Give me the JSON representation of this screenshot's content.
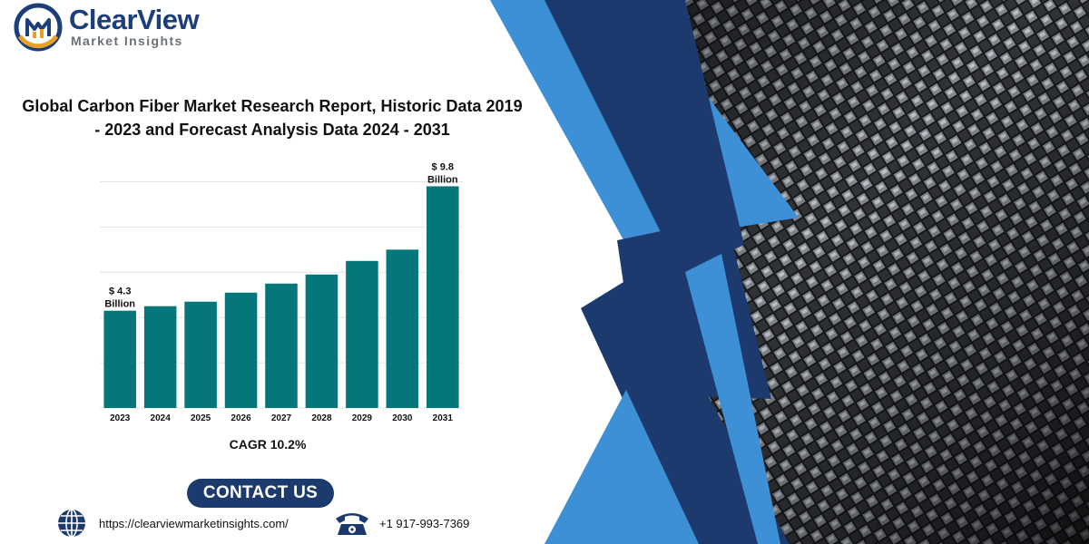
{
  "brand": {
    "name": "ClearView",
    "tagline": "Market Insights"
  },
  "title_lines": [
    "Global Carbon Fiber Market Research Report, Historic Data 2019",
    "- 2023 and Forecast Analysis Data 2024 - 2031"
  ],
  "chart_data": {
    "type": "bar",
    "categories": [
      "2023",
      "2024",
      "2025",
      "2026",
      "2027",
      "2028",
      "2029",
      "2030",
      "2031"
    ],
    "values": [
      4.3,
      4.5,
      4.7,
      5.1,
      5.5,
      5.9,
      6.5,
      7.0,
      9.8
    ],
    "value_unit": "Billion USD",
    "data_labels": [
      {
        "category": "2023",
        "lines": [
          "$ 4.3",
          "Billion"
        ]
      },
      {
        "category": "2031",
        "lines": [
          "$ 9.8",
          "Billion"
        ]
      }
    ],
    "ylim": [
      0,
      10.5
    ],
    "grid": true,
    "legend": "none",
    "bar_color": "#05777a"
  },
  "cagr_label": "CAGR 10.2%",
  "contact": {
    "button_label": "CONTACT US",
    "website": "https://clearviewmarketinsights.com/",
    "phone": "+1 917-993-7369"
  },
  "icons": {
    "logo": "clearview-logo-icon",
    "web": "globe-icon",
    "phone": "telephone-icon"
  },
  "colors": {
    "navy": "#1c3a6e",
    "accent_blue": "#3d8fd6",
    "brand_blue": "#1c3f7a",
    "bar": "#05777a"
  }
}
